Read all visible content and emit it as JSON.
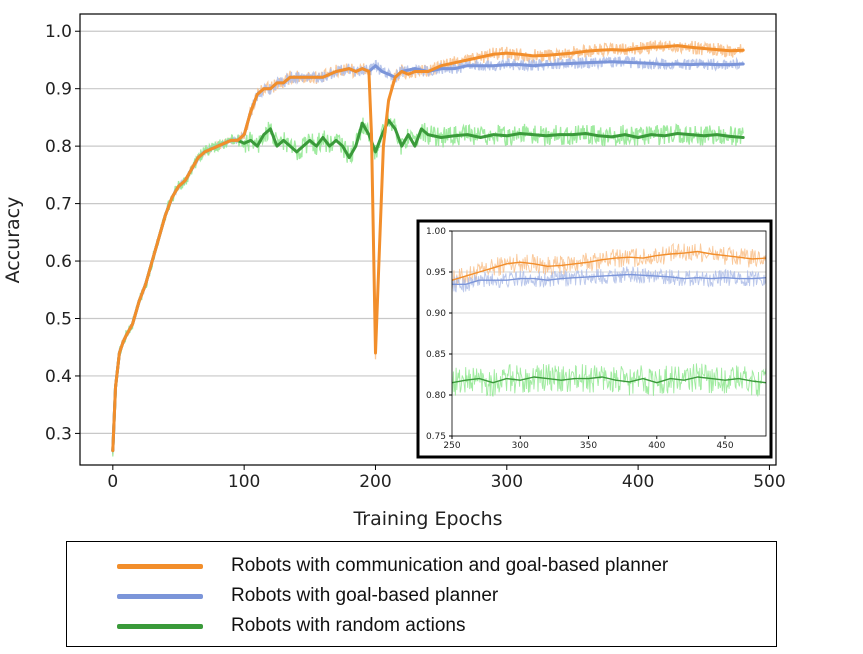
{
  "chart_data": {
    "type": "line",
    "xlabel": "Training Epochs",
    "ylabel": "Accuracy",
    "xlim": [
      -25,
      505
    ],
    "ylim": [
      0.245,
      1.03
    ],
    "xticks": [
      0,
      100,
      200,
      300,
      400,
      500
    ],
    "xtick_labels": [
      "0",
      "100",
      "200",
      "300",
      "400",
      "500"
    ],
    "yticks": [
      0.3,
      0.4,
      0.5,
      0.6,
      0.7,
      0.8,
      0.9,
      1.0
    ],
    "ytick_labels": [
      "0.3",
      "0.4",
      "0.5",
      "0.6",
      "0.7",
      "0.8",
      "0.9",
      "1.0"
    ],
    "grid": "horizontal",
    "series": [
      {
        "name": "Robots with communication and goal-based planner",
        "color": "#f28e2b",
        "x": [
          0,
          2,
          5,
          8,
          10,
          15,
          20,
          25,
          30,
          35,
          40,
          45,
          50,
          55,
          60,
          65,
          70,
          80,
          90,
          95,
          100,
          105,
          110,
          115,
          120,
          125,
          130,
          135,
          140,
          150,
          160,
          170,
          180,
          185,
          190,
          195,
          197,
          200,
          203,
          206,
          210,
          215,
          220,
          225,
          230,
          240,
          250,
          260,
          270,
          280,
          290,
          300,
          310,
          320,
          330,
          340,
          350,
          360,
          370,
          380,
          390,
          400,
          410,
          420,
          430,
          440,
          450,
          460,
          470,
          480
        ],
        "y": [
          0.27,
          0.38,
          0.44,
          0.46,
          0.47,
          0.49,
          0.53,
          0.56,
          0.6,
          0.64,
          0.68,
          0.71,
          0.73,
          0.74,
          0.76,
          0.78,
          0.79,
          0.8,
          0.81,
          0.81,
          0.82,
          0.86,
          0.89,
          0.9,
          0.9,
          0.91,
          0.91,
          0.92,
          0.92,
          0.92,
          0.92,
          0.93,
          0.935,
          0.93,
          0.935,
          0.93,
          0.82,
          0.44,
          0.62,
          0.8,
          0.88,
          0.92,
          0.93,
          0.925,
          0.93,
          0.93,
          0.94,
          0.945,
          0.95,
          0.955,
          0.96,
          0.962,
          0.96,
          0.957,
          0.958,
          0.96,
          0.962,
          0.965,
          0.967,
          0.968,
          0.967,
          0.97,
          0.972,
          0.973,
          0.975,
          0.972,
          0.97,
          0.968,
          0.966,
          0.967
        ]
      },
      {
        "name": "Robots with goal-based planner",
        "color": "#7b95d9",
        "x": [
          0,
          2,
          5,
          8,
          10,
          15,
          20,
          25,
          30,
          35,
          40,
          45,
          50,
          55,
          60,
          65,
          70,
          80,
          90,
          95,
          100,
          105,
          110,
          115,
          120,
          125,
          130,
          135,
          140,
          150,
          160,
          170,
          180,
          185,
          190,
          195,
          200,
          205,
          210,
          215,
          220,
          230,
          240,
          250,
          260,
          270,
          280,
          290,
          300,
          310,
          320,
          330,
          340,
          350,
          360,
          370,
          380,
          390,
          400,
          410,
          420,
          430,
          440,
          450,
          460,
          470,
          480
        ],
        "y": [
          0.27,
          0.38,
          0.44,
          0.46,
          0.47,
          0.49,
          0.53,
          0.56,
          0.6,
          0.64,
          0.68,
          0.71,
          0.73,
          0.74,
          0.76,
          0.78,
          0.79,
          0.8,
          0.81,
          0.81,
          0.82,
          0.86,
          0.89,
          0.9,
          0.9,
          0.91,
          0.91,
          0.92,
          0.92,
          0.92,
          0.92,
          0.93,
          0.935,
          0.93,
          0.935,
          0.93,
          0.94,
          0.93,
          0.925,
          0.92,
          0.93,
          0.935,
          0.93,
          0.935,
          0.935,
          0.94,
          0.94,
          0.94,
          0.942,
          0.942,
          0.94,
          0.942,
          0.943,
          0.944,
          0.945,
          0.946,
          0.947,
          0.946,
          0.945,
          0.944,
          0.942,
          0.943,
          0.942,
          0.943,
          0.942,
          0.942,
          0.943
        ]
      },
      {
        "name": "Robots with random actions",
        "color": "#3a9a3a",
        "x": [
          0,
          2,
          5,
          8,
          10,
          15,
          20,
          25,
          30,
          35,
          40,
          45,
          50,
          55,
          60,
          65,
          70,
          80,
          90,
          95,
          100,
          105,
          110,
          115,
          120,
          125,
          130,
          135,
          140,
          145,
          150,
          155,
          160,
          165,
          170,
          175,
          180,
          185,
          190,
          195,
          200,
          205,
          210,
          215,
          220,
          225,
          230,
          235,
          240,
          250,
          260,
          270,
          280,
          290,
          300,
          310,
          320,
          330,
          340,
          350,
          360,
          370,
          380,
          390,
          400,
          410,
          420,
          430,
          440,
          450,
          460,
          470,
          480
        ],
        "y": [
          0.27,
          0.38,
          0.44,
          0.46,
          0.47,
          0.49,
          0.53,
          0.56,
          0.6,
          0.64,
          0.68,
          0.71,
          0.73,
          0.74,
          0.76,
          0.78,
          0.79,
          0.8,
          0.81,
          0.81,
          0.805,
          0.81,
          0.8,
          0.82,
          0.83,
          0.8,
          0.81,
          0.8,
          0.79,
          0.8,
          0.81,
          0.8,
          0.815,
          0.8,
          0.81,
          0.8,
          0.78,
          0.8,
          0.84,
          0.82,
          0.79,
          0.82,
          0.845,
          0.83,
          0.8,
          0.82,
          0.8,
          0.83,
          0.82,
          0.815,
          0.818,
          0.82,
          0.815,
          0.82,
          0.818,
          0.822,
          0.82,
          0.818,
          0.82,
          0.82,
          0.822,
          0.818,
          0.816,
          0.82,
          0.815,
          0.82,
          0.818,
          0.822,
          0.82,
          0.818,
          0.82,
          0.817,
          0.815
        ]
      }
    ],
    "inset": {
      "xlim": [
        250,
        480
      ],
      "ylim": [
        0.75,
        1.0
      ],
      "xticks": [
        250,
        300,
        350,
        400,
        450
      ],
      "xtick_labels": [
        "250",
        "300",
        "350",
        "400",
        "450"
      ],
      "yticks": [
        0.75,
        0.8,
        0.85,
        0.9,
        0.95,
        1.0
      ],
      "ytick_labels": [
        "0.75",
        "0.80",
        "0.85",
        "0.90",
        "0.95",
        "1.00"
      ],
      "grid": "horizontal"
    }
  },
  "legend": {
    "items": [
      {
        "label": "Robots with communication and goal-based planner",
        "color": "#f28e2b"
      },
      {
        "label": "Robots with goal-based planner",
        "color": "#7b95d9"
      },
      {
        "label": "Robots with random actions",
        "color": "#3a9a3a"
      }
    ]
  }
}
